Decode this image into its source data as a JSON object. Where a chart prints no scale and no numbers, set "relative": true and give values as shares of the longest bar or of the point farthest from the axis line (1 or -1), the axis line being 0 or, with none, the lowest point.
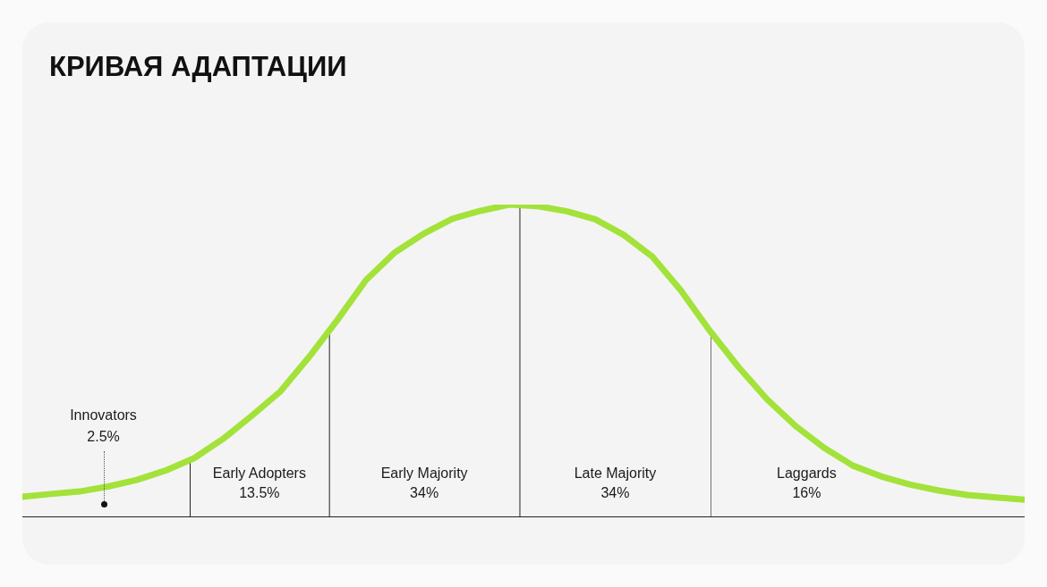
{
  "chart_data": {
    "type": "line",
    "title": "КРИВАЯ АДАПТАЦИИ",
    "relative": true,
    "legend": false,
    "marker": "none",
    "line_style": "solid",
    "categories": [
      null,
      null,
      null,
      null,
      null,
      null,
      null,
      null,
      null,
      null,
      null,
      null,
      null,
      null,
      null,
      null,
      null,
      null,
      null,
      null,
      null,
      null,
      null,
      null,
      null,
      null,
      null,
      null,
      null,
      null,
      null,
      null,
      null,
      null,
      null,
      null
    ],
    "series": [
      {
        "color": "#a3e23a",
        "values": [
          0.063,
          0.072,
          0.08,
          0.096,
          0.117,
          0.147,
          0.187,
          0.248,
          0.322,
          0.4,
          0.51,
          0.63,
          0.758,
          0.846,
          0.906,
          0.954,
          0.98,
          1.0,
          0.995,
          0.979,
          0.953,
          0.903,
          0.833,
          0.724,
          0.596,
          0.48,
          0.376,
          0.29,
          0.22,
          0.163,
          0.128,
          0.102,
          0.083,
          0.069,
          0.061,
          0.054
        ]
      }
    ],
    "annotations": [
      "Innovators\n2.5%",
      "Early Adopters\n13.5%",
      "Early Majority\n34%",
      "Late Majority\n34%",
      "Laggards\n16%"
    ]
  }
}
